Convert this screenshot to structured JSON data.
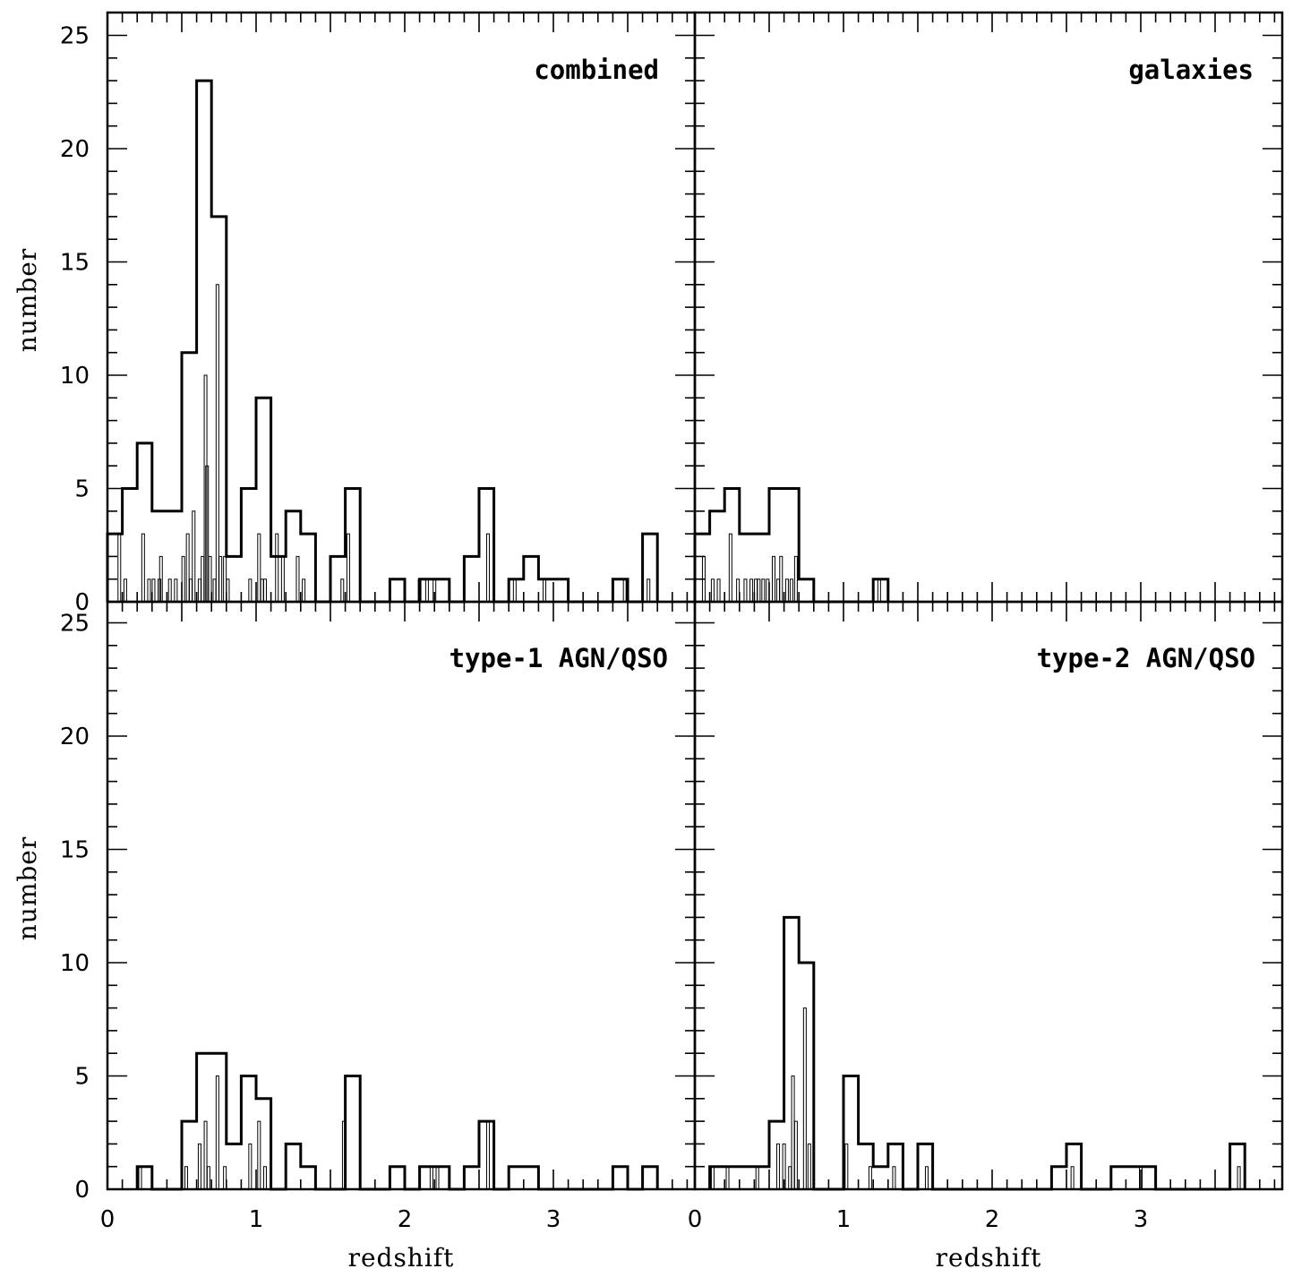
{
  "chart_data": [
    {
      "type": "histogram",
      "title": "combined",
      "xlabel": "",
      "ylabel": "number",
      "xlim": [
        0,
        3.95
      ],
      "ylim": [
        0,
        26
      ],
      "xticks": [
        "0",
        "1",
        "2",
        "3"
      ],
      "yticks": [
        "0",
        "5",
        "10",
        "15",
        "20",
        "25"
      ],
      "grid": false,
      "bin_edges": [
        0.0,
        0.1,
        0.2,
        0.3,
        0.5,
        0.6,
        0.7,
        0.8,
        0.9,
        1.0,
        1.1,
        1.2,
        1.3,
        1.4,
        1.5,
        1.6,
        1.7,
        1.9,
        2.0,
        2.1,
        2.3,
        2.4,
        2.5,
        2.6,
        2.7,
        2.8,
        2.9,
        3.1,
        3.4,
        3.5,
        3.6,
        3.7
      ],
      "counts": [
        3,
        5,
        7,
        4,
        11,
        23,
        17,
        2,
        5,
        9,
        2,
        4,
        3,
        0,
        2,
        5,
        0,
        1,
        0,
        1,
        0,
        2,
        5,
        0,
        1,
        2,
        1,
        0,
        1,
        0,
        3
      ],
      "fine_spikes": [
        [
          0.08,
          3
        ],
        [
          0.12,
          1
        ],
        [
          0.24,
          3
        ],
        [
          0.28,
          1
        ],
        [
          0.31,
          1
        ],
        [
          0.35,
          1
        ],
        [
          0.36,
          2
        ],
        [
          0.42,
          1
        ],
        [
          0.46,
          1
        ],
        [
          0.51,
          2
        ],
        [
          0.54,
          3
        ],
        [
          0.56,
          1
        ],
        [
          0.58,
          4
        ],
        [
          0.62,
          1
        ],
        [
          0.64,
          2
        ],
        [
          0.66,
          10
        ],
        [
          0.67,
          6
        ],
        [
          0.69,
          2
        ],
        [
          0.72,
          1
        ],
        [
          0.74,
          14
        ],
        [
          0.76,
          2
        ],
        [
          0.79,
          2
        ],
        [
          0.81,
          1
        ],
        [
          0.96,
          1
        ],
        [
          1.02,
          3
        ],
        [
          1.04,
          1
        ],
        [
          1.06,
          1
        ],
        [
          1.14,
          3
        ],
        [
          1.18,
          2
        ],
        [
          1.28,
          2
        ],
        [
          1.32,
          1
        ],
        [
          1.58,
          1
        ],
        [
          1.62,
          3
        ],
        [
          2.1,
          1
        ],
        [
          2.15,
          1
        ],
        [
          2.2,
          1
        ],
        [
          2.56,
          3
        ],
        [
          2.74,
          1
        ],
        [
          2.94,
          1
        ],
        [
          3.48,
          1
        ],
        [
          3.64,
          1
        ]
      ]
    },
    {
      "type": "histogram",
      "title": "galaxies",
      "xlabel": "",
      "ylabel": "",
      "xlim": [
        0,
        3.95
      ],
      "ylim": [
        0,
        26
      ],
      "xticks": [],
      "yticks": [],
      "grid": false,
      "bin_edges": [
        0.0,
        0.1,
        0.2,
        0.3,
        0.5,
        0.7,
        0.8,
        1.2,
        1.3
      ],
      "counts": [
        3,
        4,
        5,
        3,
        5,
        1,
        0,
        1
      ],
      "fine_spikes": [
        [
          0.06,
          2
        ],
        [
          0.12,
          1
        ],
        [
          0.16,
          1
        ],
        [
          0.24,
          3
        ],
        [
          0.29,
          1
        ],
        [
          0.34,
          1
        ],
        [
          0.38,
          1
        ],
        [
          0.41,
          1
        ],
        [
          0.43,
          1
        ],
        [
          0.46,
          1
        ],
        [
          0.49,
          1
        ],
        [
          0.53,
          2
        ],
        [
          0.56,
          1
        ],
        [
          0.58,
          2
        ],
        [
          0.62,
          1
        ],
        [
          0.65,
          1
        ],
        [
          0.68,
          2
        ],
        [
          1.24,
          1
        ]
      ]
    },
    {
      "type": "histogram",
      "title": "type-1 AGN/QSO",
      "xlabel": "redshift",
      "ylabel": "number",
      "xlim": [
        0,
        3.95
      ],
      "ylim": [
        0,
        26
      ],
      "xticks": [
        "0",
        "1",
        "2",
        "3"
      ],
      "yticks": [
        "0",
        "5",
        "10",
        "15",
        "20",
        "25"
      ],
      "grid": false,
      "bin_edges": [
        0.2,
        0.3,
        0.5,
        0.6,
        0.8,
        0.9,
        1.0,
        1.1,
        1.2,
        1.3,
        1.4,
        1.6,
        1.7,
        1.9,
        2.0,
        2.1,
        2.3,
        2.4,
        2.5,
        2.6,
        2.7,
        2.9,
        3.4,
        3.5,
        3.6,
        3.7
      ],
      "counts": [
        1,
        0,
        3,
        6,
        2,
        5,
        4,
        0,
        2,
        1,
        0,
        5,
        0,
        1,
        0,
        1,
        0,
        1,
        3,
        0,
        1,
        0,
        1,
        0,
        1
      ],
      "fine_spikes": [
        [
          0.22,
          1
        ],
        [
          0.53,
          1
        ],
        [
          0.62,
          2
        ],
        [
          0.66,
          3
        ],
        [
          0.68,
          1
        ],
        [
          0.74,
          5
        ],
        [
          0.79,
          1
        ],
        [
          0.96,
          2
        ],
        [
          1.02,
          3
        ],
        [
          1.06,
          1
        ],
        [
          1.59,
          3
        ],
        [
          2.18,
          1
        ],
        [
          2.22,
          1
        ],
        [
          2.56,
          3
        ]
      ]
    },
    {
      "type": "histogram",
      "title": "type-2 AGN/QSO",
      "xlabel": "redshift",
      "ylabel": "",
      "xlim": [
        0,
        3.95
      ],
      "ylim": [
        0,
        26
      ],
      "xticks": [
        "0",
        "1",
        "2",
        "3"
      ],
      "yticks": [],
      "grid": false,
      "bin_edges": [
        0.1,
        0.5,
        0.6,
        0.7,
        0.8,
        1.0,
        1.1,
        1.2,
        1.3,
        1.4,
        1.5,
        1.6,
        2.4,
        2.5,
        2.6,
        2.8,
        3.1,
        3.6,
        3.7
      ],
      "counts": [
        1,
        3,
        12,
        10,
        0,
        5,
        2,
        1,
        2,
        0,
        2,
        0,
        1,
        2,
        0,
        1,
        0,
        2
      ],
      "fine_spikes": [
        [
          0.12,
          1
        ],
        [
          0.22,
          1
        ],
        [
          0.42,
          1
        ],
        [
          0.56,
          2
        ],
        [
          0.6,
          2
        ],
        [
          0.64,
          1
        ],
        [
          0.66,
          5
        ],
        [
          0.68,
          3
        ],
        [
          0.74,
          8
        ],
        [
          0.77,
          2
        ],
        [
          1.02,
          2
        ],
        [
          1.18,
          1
        ],
        [
          1.34,
          1
        ],
        [
          1.56,
          1
        ],
        [
          2.54,
          1
        ],
        [
          3.0,
          1
        ],
        [
          3.66,
          1
        ]
      ]
    }
  ]
}
